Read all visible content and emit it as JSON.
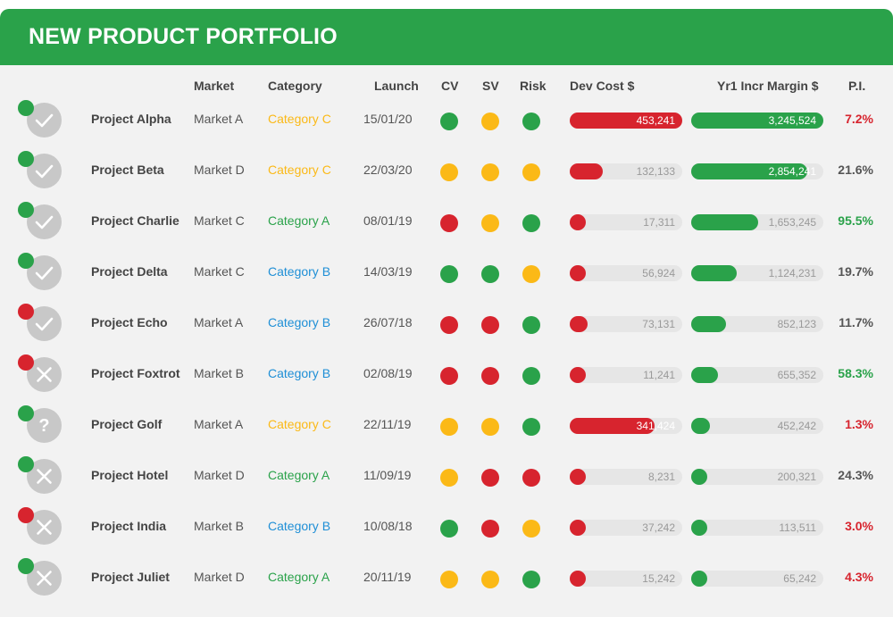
{
  "title": "NEW PRODUCT PORTFOLIO",
  "columns": {
    "market": "Market",
    "category": "Category",
    "launch": "Launch",
    "cv": "CV",
    "sv": "SV",
    "risk": "Risk",
    "dev_cost": "Dev Cost $",
    "margin": "Yr1 Incr Margin $",
    "pi": "P.I."
  },
  "colors": {
    "green": "#2aa24a",
    "amber": "#fbb917",
    "red": "#d7242e",
    "gray": "#555555",
    "category_a": "#2aa24a",
    "category_b": "#1f8fd6",
    "category_c": "#fbb917"
  },
  "scales": {
    "dev_cost_max": 453241,
    "margin_max": 3245524
  },
  "rows": [
    {
      "name": "Project Alpha",
      "status_icon": "check-icon",
      "status_dot": "green",
      "market": "Market A",
      "category": "Category C",
      "category_color": "category_c",
      "launch": "15/01/20",
      "cv": "green",
      "sv": "amber",
      "risk": "green",
      "dev_cost": 453241,
      "dev_cost_label": "453,241",
      "margin": 3245524,
      "margin_label": "3,245,524",
      "pi": "7.2%",
      "pi_color": "red"
    },
    {
      "name": "Project Beta",
      "status_icon": "check-icon",
      "status_dot": "green",
      "market": "Market D",
      "category": "Category C",
      "category_color": "category_c",
      "launch": "22/03/20",
      "cv": "amber",
      "sv": "amber",
      "risk": "amber",
      "dev_cost": 132133,
      "dev_cost_label": "132,133",
      "margin": 2854241,
      "margin_label": "2,854,241",
      "pi": "21.6%",
      "pi_color": "gray"
    },
    {
      "name": "Project Charlie",
      "status_icon": "check-icon",
      "status_dot": "green",
      "market": "Market C",
      "category": "Category A",
      "category_color": "category_a",
      "launch": "08/01/19",
      "cv": "red",
      "sv": "amber",
      "risk": "green",
      "dev_cost": 17311,
      "dev_cost_label": "17,311",
      "margin": 1653245,
      "margin_label": "1,653,245",
      "pi": "95.5%",
      "pi_color": "green"
    },
    {
      "name": "Project Delta",
      "status_icon": "check-icon",
      "status_dot": "green",
      "market": "Market C",
      "category": "Category B",
      "category_color": "category_b",
      "launch": "14/03/19",
      "cv": "green",
      "sv": "green",
      "risk": "amber",
      "dev_cost": 56924,
      "dev_cost_label": "56,924",
      "margin": 1124231,
      "margin_label": "1,124,231",
      "pi": "19.7%",
      "pi_color": "gray"
    },
    {
      "name": "Project Echo",
      "status_icon": "check-icon",
      "status_dot": "red",
      "market": "Market A",
      "category": "Category B",
      "category_color": "category_b",
      "launch": "26/07/18",
      "cv": "red",
      "sv": "red",
      "risk": "green",
      "dev_cost": 73131,
      "dev_cost_label": "73,131",
      "margin": 852123,
      "margin_label": "852,123",
      "pi": "11.7%",
      "pi_color": "gray"
    },
    {
      "name": "Project Foxtrot",
      "status_icon": "cross-icon",
      "status_dot": "red",
      "market": "Market B",
      "category": "Category B",
      "category_color": "category_b",
      "launch": "02/08/19",
      "cv": "red",
      "sv": "red",
      "risk": "green",
      "dev_cost": 11241,
      "dev_cost_label": "11,241",
      "margin": 655352,
      "margin_label": "655,352",
      "pi": "58.3%",
      "pi_color": "green"
    },
    {
      "name": "Project Golf",
      "status_icon": "question-icon",
      "status_dot": "green",
      "market": "Market A",
      "category": "Category C",
      "category_color": "category_c",
      "launch": "22/11/19",
      "cv": "amber",
      "sv": "amber",
      "risk": "green",
      "dev_cost": 341424,
      "dev_cost_label": "341,424",
      "margin": 452242,
      "margin_label": "452,242",
      "pi": "1.3%",
      "pi_color": "red"
    },
    {
      "name": "Project Hotel",
      "status_icon": "cross-icon",
      "status_dot": "green",
      "market": "Market D",
      "category": "Category A",
      "category_color": "category_a",
      "launch": "11/09/19",
      "cv": "amber",
      "sv": "red",
      "risk": "red",
      "dev_cost": 8231,
      "dev_cost_label": "8,231",
      "margin": 200321,
      "margin_label": "200,321",
      "pi": "24.3%",
      "pi_color": "gray"
    },
    {
      "name": "Project India",
      "status_icon": "cross-icon",
      "status_dot": "red",
      "market": "Market B",
      "category": "Category B",
      "category_color": "category_b",
      "launch": "10/08/18",
      "cv": "green",
      "sv": "red",
      "risk": "amber",
      "dev_cost": 37242,
      "dev_cost_label": "37,242",
      "margin": 113511,
      "margin_label": "113,511",
      "pi": "3.0%",
      "pi_color": "red"
    },
    {
      "name": "Project Juliet",
      "status_icon": "cross-icon",
      "status_dot": "green",
      "market": "Market D",
      "category": "Category A",
      "category_color": "category_a",
      "launch": "20/11/19",
      "cv": "amber",
      "sv": "amber",
      "risk": "green",
      "dev_cost": 15242,
      "dev_cost_label": "15,242",
      "margin": 65242,
      "margin_label": "65,242",
      "pi": "4.3%",
      "pi_color": "red"
    }
  ]
}
